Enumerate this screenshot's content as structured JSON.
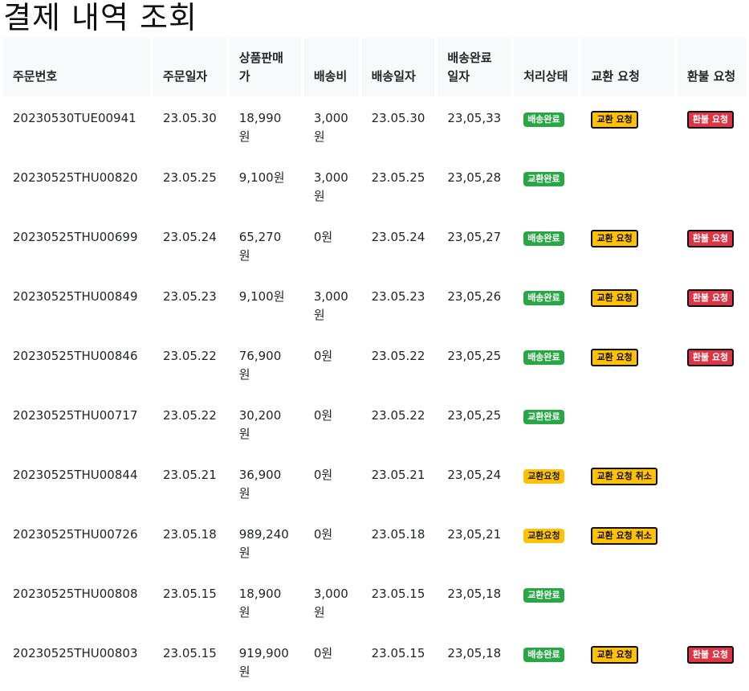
{
  "page_title": "결제 내역 조회",
  "columns": [
    "주문번호",
    "주문일자",
    "상품판매가",
    "배송비",
    "배송일자",
    "배송완료일자",
    "처리상태",
    "교환 요청",
    "환불 요청"
  ],
  "rows": [
    {
      "order_no": "20230530TUE00941",
      "order_date": "23.05.30",
      "price": "18,990원",
      "shipping": "3,000원",
      "ship_date": "23.05.30",
      "delivered_date": "23,05,33",
      "status": "배송완료",
      "exchange": "교환 요청",
      "refund": "환불 요청"
    },
    {
      "order_no": "20230525THU00820",
      "order_date": "23.05.25",
      "price": "9,100원",
      "shipping": "3,000원",
      "ship_date": "23.05.25",
      "delivered_date": "23,05,28",
      "status": "교환완료",
      "exchange": "",
      "refund": ""
    },
    {
      "order_no": "20230525THU00699",
      "order_date": "23.05.24",
      "price": "65,270원",
      "shipping": "0원",
      "ship_date": "23.05.24",
      "delivered_date": "23,05,27",
      "status": "배송완료",
      "exchange": "교환 요청",
      "refund": "환불 요청"
    },
    {
      "order_no": "20230525THU00849",
      "order_date": "23.05.23",
      "price": "9,100원",
      "shipping": "3,000원",
      "ship_date": "23.05.23",
      "delivered_date": "23,05,26",
      "status": "배송완료",
      "exchange": "교환 요청",
      "refund": "환불 요청"
    },
    {
      "order_no": "20230525THU00846",
      "order_date": "23.05.22",
      "price": "76,900원",
      "shipping": "0원",
      "ship_date": "23.05.22",
      "delivered_date": "23,05,25",
      "status": "배송완료",
      "exchange": "교환 요청",
      "refund": "환불 요청"
    },
    {
      "order_no": "20230525THU00717",
      "order_date": "23.05.22",
      "price": "30,200원",
      "shipping": "0원",
      "ship_date": "23.05.22",
      "delivered_date": "23,05,25",
      "status": "교환완료",
      "exchange": "",
      "refund": ""
    },
    {
      "order_no": "20230525THU00844",
      "order_date": "23.05.21",
      "price": "36,900원",
      "shipping": "0원",
      "ship_date": "23.05.21",
      "delivered_date": "23,05,24",
      "status": "교환요청",
      "exchange": "교환 요청 취소",
      "refund": ""
    },
    {
      "order_no": "20230525THU00726",
      "order_date": "23.05.18",
      "price": "989,240원",
      "shipping": "0원",
      "ship_date": "23.05.18",
      "delivered_date": "23,05,21",
      "status": "교환요청",
      "exchange": "교환 요청 취소",
      "refund": ""
    },
    {
      "order_no": "20230525THU00808",
      "order_date": "23.05.15",
      "price": "18,900원",
      "shipping": "3,000원",
      "ship_date": "23.05.15",
      "delivered_date": "23,05,18",
      "status": "교환완료",
      "exchange": "",
      "refund": ""
    },
    {
      "order_no": "20230525THU00803",
      "order_date": "23.05.15",
      "price": "919,900원",
      "shipping": "0원",
      "ship_date": "23.05.15",
      "delivered_date": "23,05,18",
      "status": "배송완료",
      "exchange": "교환 요청",
      "refund": "환불 요청"
    }
  ],
  "status_colors": {
    "배송완료": "#28a745",
    "교환완료": "#28a745",
    "교환요청": "#ffc107"
  },
  "button_colors": {
    "exchange": "#ffc107",
    "refund": "#dc3545"
  }
}
